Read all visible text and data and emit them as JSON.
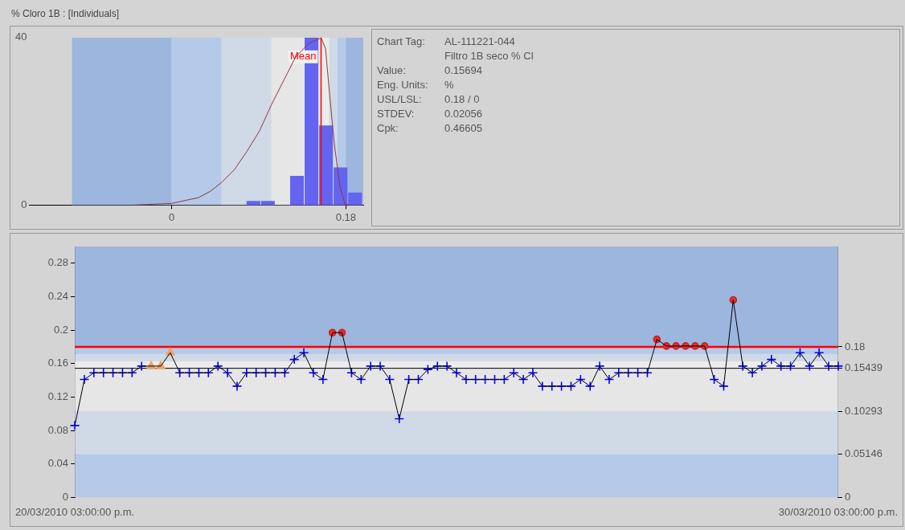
{
  "chart_data": [
    {
      "type": "histogram",
      "title": "% Cloro 1B : [Individuals]",
      "color": "#6464f0",
      "bins": [
        0.077,
        0.092,
        0.107,
        0.122,
        0.137,
        0.152,
        0.167,
        0.182,
        0.197
      ],
      "values": [
        1,
        1,
        0,
        7,
        40,
        19,
        9,
        3
      ],
      "xlim": [
        -0.147,
        0.198
      ],
      "xticks": [
        0,
        0.18
      ],
      "ylim": [
        0,
        40
      ],
      "yticks": [
        0,
        40
      ],
      "bands": [
        {
          "axis": "x",
          "from": -0.10293,
          "to": 0,
          "color": "#9db6de"
        },
        {
          "axis": "x",
          "from": 0,
          "to": 0.05146,
          "color": "#b5c9e8"
        },
        {
          "axis": "x",
          "from": 0.05146,
          "to": 0.10293,
          "color": "#d0d9e6"
        },
        {
          "axis": "x",
          "from": 0.10293,
          "to": 0.15439,
          "color": "#e6e6e6"
        },
        {
          "axis": "x",
          "from": 0.15439,
          "to": 0.16293,
          "color": "#ececec"
        },
        {
          "axis": "x",
          "from": 0.16293,
          "to": 0.17146,
          "color": "#d0d9e6"
        },
        {
          "axis": "x",
          "from": 0.17146,
          "to": 0.18,
          "color": "#b5c9e8"
        },
        {
          "axis": "x",
          "from": 0.18,
          "to": 0.198,
          "color": "#9db6de"
        }
      ],
      "ref_lines": [
        {
          "axis": "x",
          "value": 0.15439,
          "label": "Mean",
          "color": "#ff0000"
        }
      ],
      "series": [
        {
          "type": "line",
          "color": "#8b3a3a",
          "marker": "none",
          "x": [
            -0.039,
            0,
            0.028,
            0.04,
            0.052,
            0.065,
            0.078,
            0.091,
            0.103,
            0.115,
            0.128,
            0.142,
            0.1545,
            0.159,
            0.163,
            0.168,
            0.174,
            0.179,
            0.183
          ],
          "values": [
            0,
            0.4,
            1.8,
            3.3,
            5.5,
            8.5,
            12.9,
            17.8,
            23.9,
            29.4,
            35.3,
            38.7,
            39.9,
            37.4,
            27,
            14.7,
            4.3,
            0.3,
            0
          ]
        }
      ]
    },
    {
      "type": "other",
      "annotations": [
        "Chart Tag:",
        "AL-111221-044\nFiltro 1B seco % Cl",
        "Value:",
        "0.15694",
        "Eng. Units:",
        "%",
        "USL/LSL:",
        "0.18 / 0",
        "STDEV:",
        "0.02056",
        "Cpk:",
        "0.46605"
      ]
    },
    {
      "type": "line",
      "categories": [
        "20/03/2010 03:00:00 p.m.",
        null,
        null,
        null,
        null,
        null,
        null,
        null,
        null,
        null,
        null,
        null,
        null,
        null,
        null,
        null,
        null,
        null,
        null,
        null,
        null,
        null,
        null,
        null,
        null,
        null,
        null,
        null,
        null,
        null,
        null,
        null,
        null,
        null,
        null,
        null,
        null,
        null,
        null,
        null,
        null,
        null,
        null,
        null,
        null,
        null,
        null,
        null,
        null,
        null,
        null,
        null,
        null,
        null,
        null,
        null,
        null,
        null,
        null,
        null,
        null,
        null,
        null,
        null,
        null,
        null,
        null,
        null,
        null,
        null,
        null,
        null,
        null,
        null,
        null,
        null,
        null,
        null,
        null,
        null,
        "30/03/2010 03:00:00 p.m."
      ],
      "ylim": [
        0,
        0.3
      ],
      "yticks": [
        0,
        0.04,
        0.08,
        0.12,
        0.16,
        0.2,
        0.24,
        0.28
      ],
      "y2lim": [
        0,
        0.3
      ],
      "y2ticks": [
        0,
        0.05146,
        0.10293,
        0.15439,
        0.18
      ],
      "bands": [
        {
          "axis": "y2",
          "from": 0,
          "to": 0.05146,
          "color": "#b5c9e8"
        },
        {
          "axis": "y2",
          "from": 0.05146,
          "to": 0.10293,
          "color": "#d0d9e6"
        },
        {
          "axis": "y2",
          "from": 0.10293,
          "to": 0.15439,
          "color": "#e6e6e6"
        },
        {
          "axis": "y2",
          "from": 0.15439,
          "to": 0.16293,
          "color": "#ececec"
        },
        {
          "axis": "y2",
          "from": 0.16293,
          "to": 0.17146,
          "color": "#d0d9e6"
        },
        {
          "axis": "y2",
          "from": 0.17146,
          "to": 0.18,
          "color": "#b5c9e8"
        },
        {
          "axis": "y2",
          "from": 0.18,
          "to": 0.3,
          "color": "#9db6de"
        }
      ],
      "ref_lines": [
        {
          "axis": "y2",
          "value": 0.18,
          "color": "#ff0000"
        },
        {
          "axis": "y2",
          "value": 0.15439,
          "color": "#000000"
        }
      ],
      "series": [
        {
          "type": "line",
          "color": "#000000",
          "marker": "none",
          "values": [
            0.086,
            0.141,
            0.149,
            0.149,
            0.149,
            0.149,
            0.149,
            0.157,
            0.157,
            0.157,
            0.173,
            0.149,
            0.149,
            0.149,
            0.149,
            0.157,
            0.149,
            0.133,
            0.149,
            0.149,
            0.149,
            0.149,
            0.149,
            0.165,
            0.173,
            0.149,
            0.141,
            0.197,
            0.197,
            0.149,
            0.141,
            0.157,
            0.157,
            0.141,
            0.094,
            0.141,
            0.141,
            0.153,
            0.157,
            0.157,
            0.149,
            0.141,
            0.141,
            0.141,
            0.141,
            0.141,
            0.149,
            0.141,
            0.149,
            0.133,
            0.133,
            0.133,
            0.133,
            0.141,
            0.133,
            0.157,
            0.141,
            0.149,
            0.149,
            0.149,
            0.149,
            0.189,
            0.181,
            0.181,
            0.181,
            0.181,
            0.181,
            0.141,
            0.133,
            0.236,
            0.157,
            0.149,
            0.157,
            0.165,
            0.157,
            0.157,
            0.173,
            0.157,
            0.173,
            0.157,
            0.157
          ]
        },
        {
          "type": "scatter",
          "color": "#0000ff",
          "marker": "cross",
          "values": [
            0.086,
            0.141,
            0.149,
            0.149,
            0.149,
            0.149,
            0.149,
            0.157,
            null,
            null,
            null,
            0.149,
            0.149,
            0.149,
            0.149,
            0.157,
            0.149,
            0.133,
            0.149,
            0.149,
            0.149,
            0.149,
            0.149,
            0.165,
            0.173,
            0.149,
            0.141,
            null,
            null,
            0.149,
            0.141,
            0.157,
            0.157,
            0.141,
            0.094,
            0.141,
            0.141,
            0.153,
            0.157,
            0.157,
            0.149,
            0.141,
            0.141,
            0.141,
            0.141,
            0.141,
            0.149,
            0.141,
            0.149,
            0.133,
            0.133,
            0.133,
            0.133,
            0.141,
            0.133,
            0.157,
            0.141,
            0.149,
            0.149,
            0.149,
            0.149,
            null,
            null,
            null,
            null,
            null,
            null,
            0.141,
            0.133,
            null,
            0.157,
            0.149,
            0.157,
            0.165,
            0.157,
            0.157,
            0.173,
            0.157,
            0.173,
            0.157,
            0.157
          ]
        },
        {
          "type": "scatter",
          "color": "#f4a060",
          "marker": "triangle",
          "values": [
            null,
            null,
            null,
            null,
            null,
            null,
            null,
            null,
            0.157,
            0.157,
            0.173,
            null,
            null,
            null,
            null,
            null,
            null,
            null,
            null,
            null,
            null,
            null,
            null,
            null,
            null,
            null,
            null,
            null,
            null,
            null,
            null,
            null,
            null,
            null,
            null,
            null,
            null,
            null,
            null,
            null,
            null,
            null,
            null,
            null,
            null,
            null,
            null,
            null,
            null,
            null,
            null,
            null,
            null,
            null,
            null,
            null,
            null,
            null,
            null,
            null,
            null,
            null,
            null,
            null,
            null,
            null,
            null,
            null,
            null,
            null,
            null,
            null,
            null,
            null,
            null,
            null,
            null,
            null,
            null,
            null,
            null
          ]
        },
        {
          "type": "scatter",
          "color": "#e03030",
          "marker": "circle",
          "values": [
            null,
            null,
            null,
            null,
            null,
            null,
            null,
            null,
            null,
            null,
            null,
            null,
            null,
            null,
            null,
            null,
            null,
            null,
            null,
            null,
            null,
            null,
            null,
            null,
            null,
            null,
            null,
            0.197,
            0.197,
            null,
            null,
            null,
            null,
            null,
            null,
            null,
            null,
            null,
            null,
            null,
            null,
            null,
            null,
            null,
            null,
            null,
            null,
            null,
            null,
            null,
            null,
            null,
            null,
            null,
            null,
            null,
            null,
            null,
            null,
            null,
            null,
            0.189,
            0.181,
            0.181,
            0.181,
            0.181,
            0.181,
            null,
            null,
            0.236,
            null,
            null,
            null,
            null,
            null,
            null,
            null,
            null,
            null,
            null,
            null
          ]
        }
      ]
    }
  ]
}
